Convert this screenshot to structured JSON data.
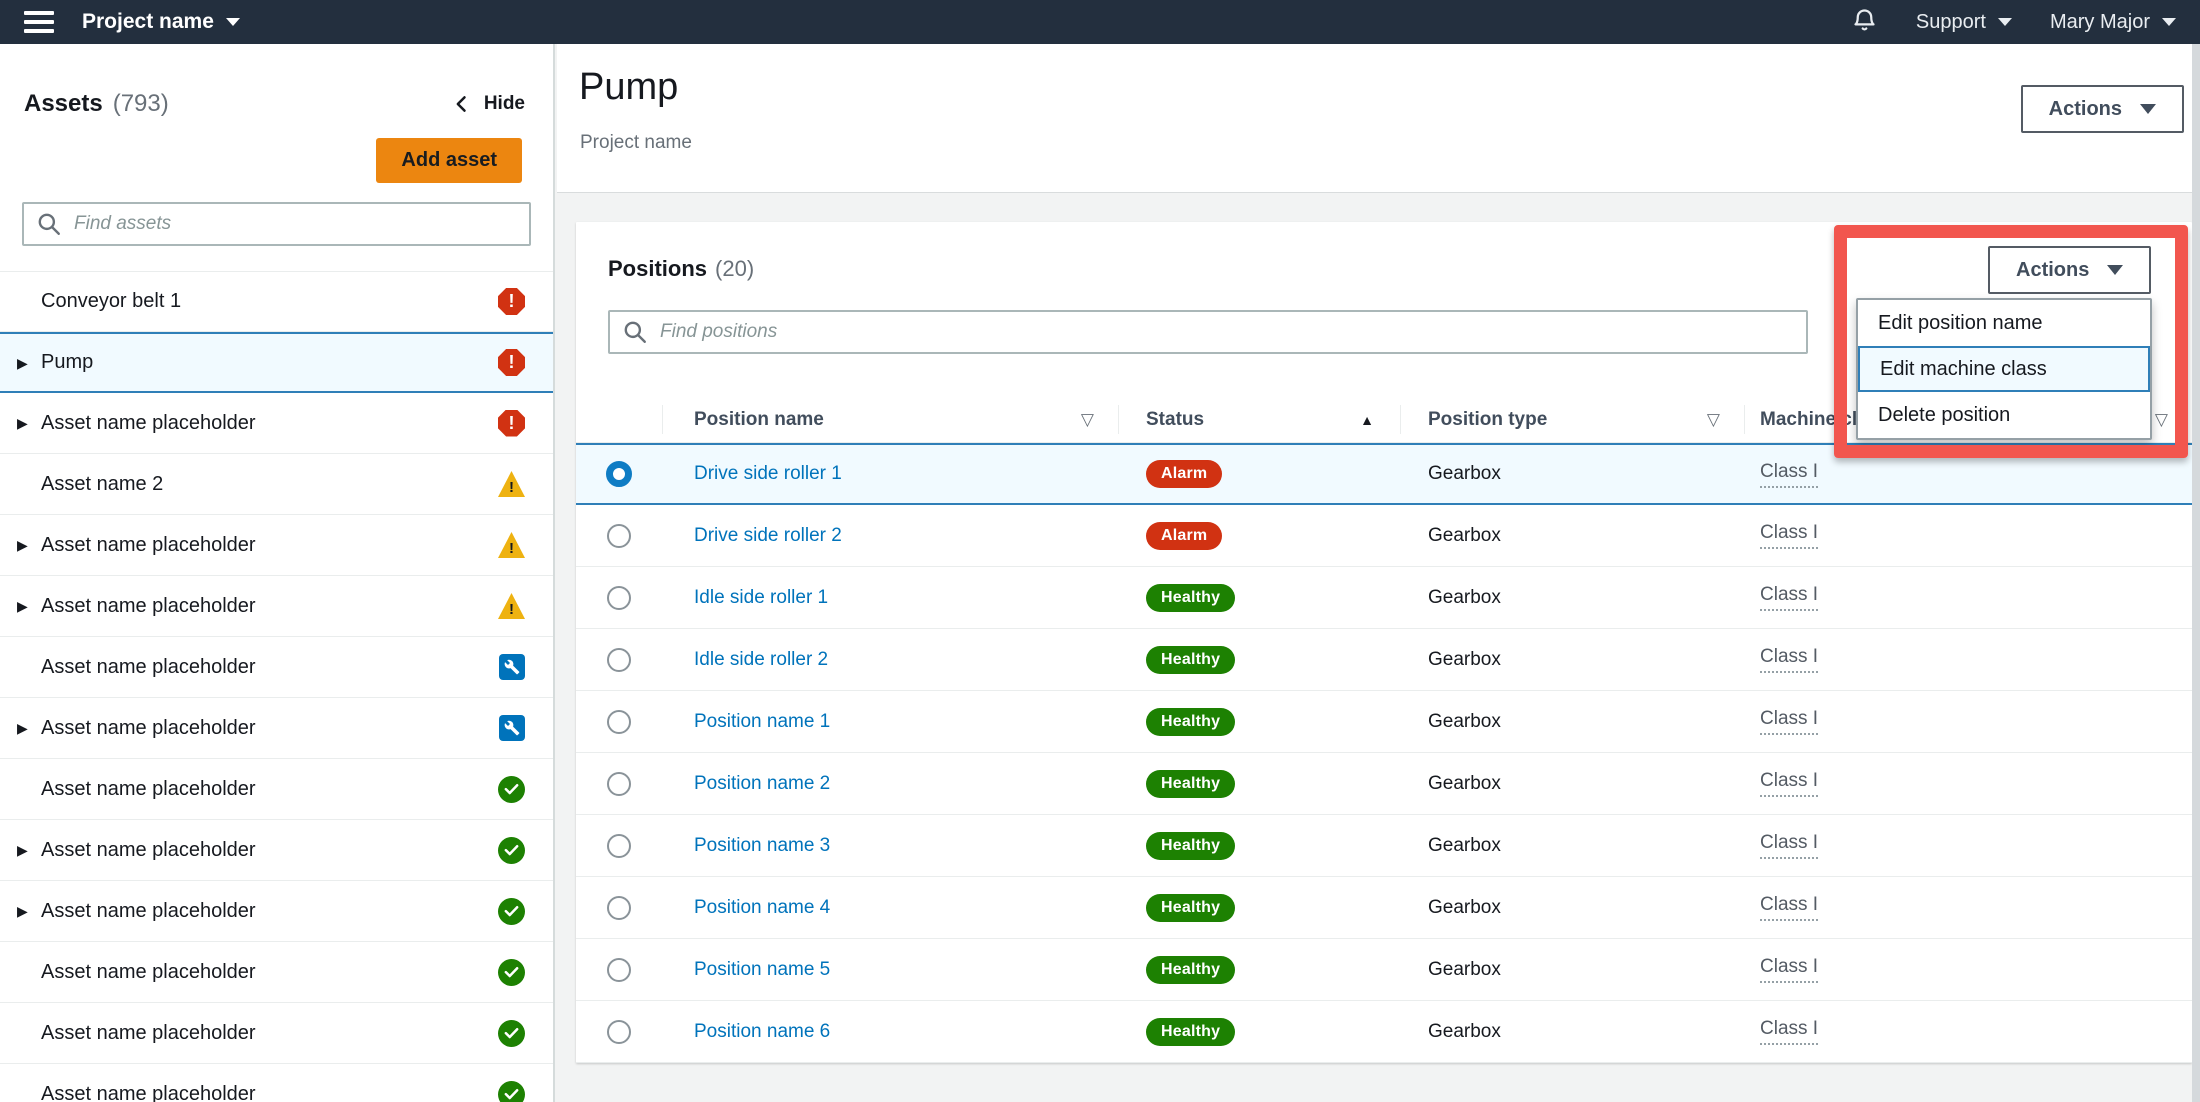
{
  "topnav": {
    "project_label": "Project name",
    "support_label": "Support",
    "user_label": "Mary Major"
  },
  "sidebar": {
    "title": "Assets",
    "count": "(793)",
    "hide_label": "Hide",
    "add_button_label": "Add asset",
    "search_placeholder": "Find assets",
    "items": [
      {
        "name": "Conveyor belt 1",
        "status": "alarm",
        "expandable": false,
        "selected": false
      },
      {
        "name": "Pump",
        "status": "alarm",
        "expandable": true,
        "selected": true
      },
      {
        "name": "Asset name placeholder",
        "status": "alarm",
        "expandable": true
      },
      {
        "name": "Asset name 2",
        "status": "warning",
        "expandable": false
      },
      {
        "name": "Asset name placeholder",
        "status": "warning",
        "expandable": true
      },
      {
        "name": "Asset name placeholder",
        "status": "warning",
        "expandable": true
      },
      {
        "name": "Asset name placeholder",
        "status": "maintenance",
        "expandable": false
      },
      {
        "name": "Asset name placeholder",
        "status": "maintenance",
        "expandable": true
      },
      {
        "name": "Asset name placeholder",
        "status": "healthy",
        "expandable": false
      },
      {
        "name": "Asset name placeholder",
        "status": "healthy",
        "expandable": true
      },
      {
        "name": "Asset name placeholder",
        "status": "healthy",
        "expandable": true
      },
      {
        "name": "Asset name placeholder",
        "status": "healthy",
        "expandable": false
      },
      {
        "name": "Asset name placeholder",
        "status": "healthy",
        "expandable": false
      },
      {
        "name": "Asset name placeholder",
        "status": "healthy",
        "expandable": false,
        "partial": true
      }
    ]
  },
  "page": {
    "title": "Pump",
    "subtitle": "Project name",
    "actions_button_label": "Actions"
  },
  "positions": {
    "title": "Positions",
    "count": "(20)",
    "search_placeholder": "Find positions",
    "actions_button_label": "Actions",
    "menu_items": [
      {
        "label": "Edit position name",
        "highlighted": false
      },
      {
        "label": "Edit machine class",
        "highlighted": true
      },
      {
        "label": "Delete position",
        "highlighted": false
      }
    ],
    "table": {
      "columns": [
        {
          "label": "Position name",
          "sort": "filter"
        },
        {
          "label": "Status",
          "sort": "asc"
        },
        {
          "label": "Position type",
          "sort": "filter"
        },
        {
          "label": "Machine class",
          "sort": "filter"
        }
      ],
      "rows": [
        {
          "name": "Drive side roller 1",
          "status": "Alarm",
          "status_kind": "alarm",
          "type": "Gearbox",
          "machine_class": "Class I",
          "selected": true
        },
        {
          "name": "Drive side roller 2",
          "status": "Alarm",
          "status_kind": "alarm",
          "type": "Gearbox",
          "machine_class": "Class I",
          "selected": false
        },
        {
          "name": "Idle side roller 1",
          "status": "Healthy",
          "status_kind": "healthy",
          "type": "Gearbox",
          "machine_class": "Class I",
          "selected": false
        },
        {
          "name": "Idle side roller 2",
          "status": "Healthy",
          "status_kind": "healthy",
          "type": "Gearbox",
          "machine_class": "Class I",
          "selected": false
        },
        {
          "name": "Position name 1",
          "status": "Healthy",
          "status_kind": "healthy",
          "type": "Gearbox",
          "machine_class": "Class I",
          "selected": false
        },
        {
          "name": "Position name 2",
          "status": "Healthy",
          "status_kind": "healthy",
          "type": "Gearbox",
          "machine_class": "Class I",
          "selected": false
        },
        {
          "name": "Position name 3",
          "status": "Healthy",
          "status_kind": "healthy",
          "type": "Gearbox",
          "machine_class": "Class I",
          "selected": false
        },
        {
          "name": "Position name 4",
          "status": "Healthy",
          "status_kind": "healthy",
          "type": "Gearbox",
          "machine_class": "Class I",
          "selected": false
        },
        {
          "name": "Position name 5",
          "status": "Healthy",
          "status_kind": "healthy",
          "type": "Gearbox",
          "machine_class": "Class I",
          "selected": false
        },
        {
          "name": "Position name 6",
          "status": "Healthy",
          "status_kind": "healthy",
          "type": "Gearbox",
          "machine_class": "Class I",
          "selected": false
        }
      ]
    }
  },
  "colors": {
    "nav_bg": "#232f3e",
    "orange": "#ec8610",
    "link": "#0073bb",
    "alarm": "#d13212",
    "healthy": "#1d8102",
    "warning": "#eeb211",
    "maintenance": "#0073bb",
    "selected_bg": "#f1faff",
    "selected_border": "#2f7fb8",
    "annotation": "#f2564e",
    "radio_blue": "#0f7cc4"
  }
}
